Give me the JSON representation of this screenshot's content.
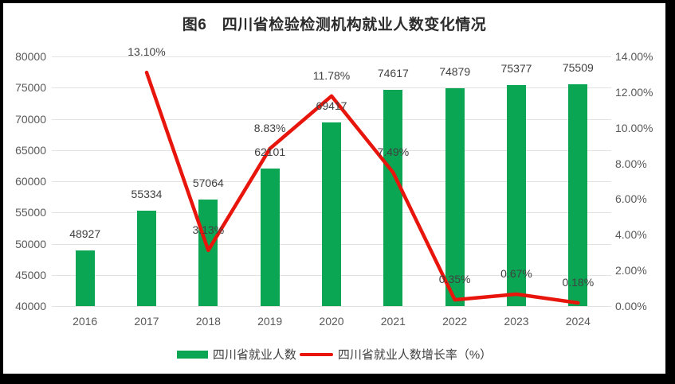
{
  "title": "图6　四川省检验检测机构就业人数变化情况",
  "chart_data": {
    "type": "bar+line",
    "title": "图6　四川省检验检测机构就业人数变化情况",
    "categories": [
      "2016",
      "2017",
      "2018",
      "2019",
      "2020",
      "2021",
      "2022",
      "2023",
      "2024"
    ],
    "series": [
      {
        "name": "四川省就业人数",
        "type": "bar",
        "axis": "left",
        "color": "#0aa653",
        "values": [
          48927,
          55334,
          57064,
          62101,
          69417,
          74617,
          74879,
          75377,
          75509
        ],
        "labels": [
          "48927",
          "55334",
          "57064",
          "62101",
          "69417",
          "74617",
          "74879",
          "75377",
          "75509"
        ]
      },
      {
        "name": "四川省就业人数增长率（%）",
        "type": "line",
        "axis": "right",
        "color": "#e8150c",
        "values": [
          null,
          13.1,
          3.13,
          8.83,
          11.78,
          7.49,
          0.35,
          0.67,
          0.18
        ],
        "labels": [
          null,
          "13.10%",
          "3.13%",
          "8.83%",
          "11.78%",
          "7.49%",
          "0.35%",
          "0.67%",
          "0.18%"
        ]
      }
    ],
    "left_axis": {
      "min": 40000,
      "max": 80000,
      "step": 5000,
      "tick_labels": [
        "80000",
        "75000",
        "70000",
        "65000",
        "60000",
        "55000",
        "50000",
        "45000",
        "40000"
      ]
    },
    "right_axis": {
      "min": 0,
      "max": 14,
      "step": 2,
      "tick_labels": [
        "14.00%",
        "12.00%",
        "10.00%",
        "8.00%",
        "6.00%",
        "4.00%",
        "2.00%",
        "0.00%"
      ]
    },
    "grid": "horizontal",
    "legend_position": "bottom",
    "colors": {
      "grid": "#e2e2e2",
      "axis_text": "#595959",
      "label_text": "#404040",
      "title_text": "#2b2b2b",
      "background": "#ffffff",
      "frame": "#000000"
    }
  }
}
